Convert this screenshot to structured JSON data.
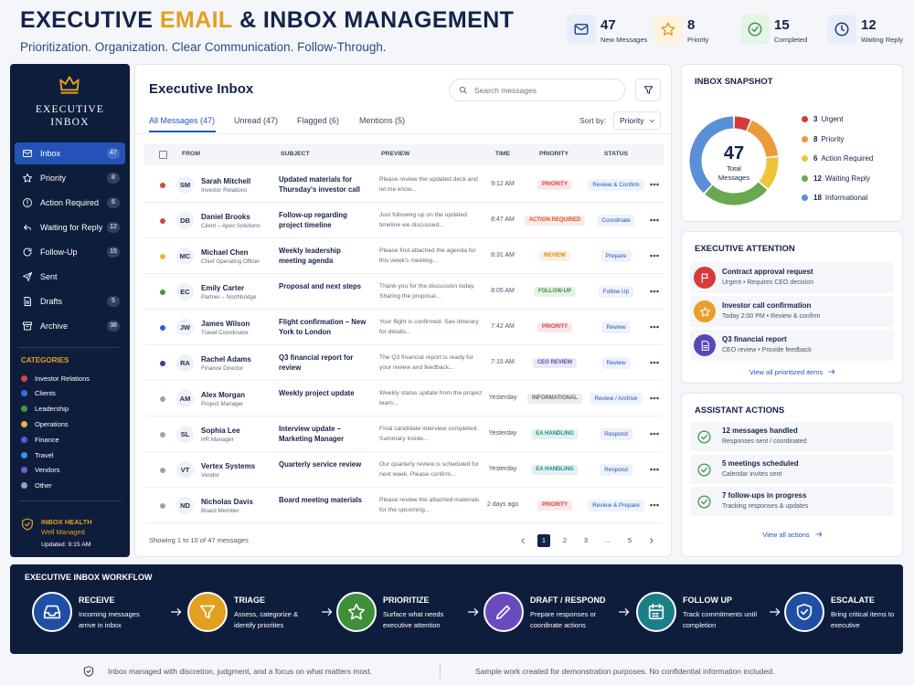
{
  "header": {
    "title_parts": [
      "EXECUTIVE",
      "EMAIL",
      "& INBOX MANAGEMENT"
    ],
    "subtitle": "Prioritization. Organization. Clear Communication. Follow-Through.",
    "stats": [
      {
        "value": 47,
        "label": "New Messages"
      },
      {
        "value": 8,
        "label": "Priority"
      },
      {
        "value": 15,
        "label": "Completed"
      },
      {
        "value": 12,
        "label": "Waiting Reply"
      }
    ]
  },
  "sidebar": {
    "brand": [
      "EXECUTIVE",
      "INBOX"
    ],
    "nav": [
      {
        "label": "Inbox",
        "count": 47
      },
      {
        "label": "Priority",
        "count": 8
      },
      {
        "label": "Action Required",
        "count": 6
      },
      {
        "label": "Waiting for Reply",
        "count": 12
      },
      {
        "label": "Follow-Up",
        "count": 15
      },
      {
        "label": "Sent"
      },
      {
        "label": "Drafts",
        "count": 5
      },
      {
        "label": "Archive",
        "count": 38
      }
    ],
    "categories_title": "CATEGORIES",
    "categories": [
      {
        "name": "Investor Relations",
        "color": "#d64545"
      },
      {
        "name": "Clients",
        "color": "#3a6fd8"
      },
      {
        "name": "Leadership",
        "color": "#3f9a4a"
      },
      {
        "name": "Operations",
        "color": "#e8b730"
      },
      {
        "name": "Finance",
        "color": "#4f63d8"
      },
      {
        "name": "Travel",
        "color": "#3b8fe6"
      },
      {
        "name": "Vendors",
        "color": "#7b5bd1"
      },
      {
        "name": "Other",
        "color": "#9aa3ae"
      }
    ],
    "health": {
      "title": "INBOX HEALTH",
      "status": "Well Managed",
      "updated": "Updated: 9:15 AM"
    }
  },
  "inbox": {
    "title": "Executive Inbox",
    "search_placeholder": "Search messages",
    "tabs": [
      "All Messages (47)",
      "Unread (47)",
      "Flagged (6)",
      "Mentions (5)"
    ],
    "sort_label": "Sort by:",
    "sort_value": "Priority",
    "columns": [
      "FROM",
      "SUBJECT",
      "PREVIEW",
      "TIME",
      "PRIORITY",
      "STATUS"
    ],
    "rows": [
      {
        "color": "#d64545",
        "initials": "SM",
        "name": "Sarah Mitchell",
        "role": "Investor Relations",
        "subject": "Updated materials for Thursday's investor call",
        "preview": "Please review the updated deck and let me know...",
        "time": "9:12 AM",
        "priority": "PRIORITY",
        "priority_color": "#d64545",
        "status": "Review & Confirm"
      },
      {
        "color": "#d64545",
        "initials": "DB",
        "name": "Daniel Brooks",
        "role": "Client – Apex Solutions",
        "subject": "Follow-up regarding project timeline",
        "preview": "Just following up on the updated timeline we discussed...",
        "time": "8:47 AM",
        "priority": "ACTION REQUIRED",
        "priority_color": "#d9532b",
        "status": "Coordinate"
      },
      {
        "color": "#e8b730",
        "initials": "MC",
        "name": "Michael Chen",
        "role": "Chief Operating Officer",
        "subject": "Weekly leadership meeting agenda",
        "preview": "Please find attached the agenda for this week's meeting...",
        "time": "8:31 AM",
        "priority": "REVIEW",
        "priority_color": "#d98a12",
        "status": "Prepare"
      },
      {
        "color": "#3f9a4a",
        "initials": "EC",
        "name": "Emily Carter",
        "role": "Partner – Northbridge",
        "subject": "Proposal and next steps",
        "preview": "Thank you for the discussion today. Sharing the proposal...",
        "time": "8:05 AM",
        "priority": "FOLLOW-UP",
        "priority_color": "#3f8f3a",
        "status": "Follow Up"
      },
      {
        "color": "#2f5fd0",
        "initials": "JW",
        "name": "James Wilson",
        "role": "Travel Coordinator",
        "subject": "Flight confirmation – New York to London",
        "preview": "Your flight is confirmed. See itinerary for details...",
        "time": "7:42 AM",
        "priority": "PRIORITY",
        "priority_color": "#d64545",
        "status": "Review"
      },
      {
        "color": "#3a3f9e",
        "initials": "RA",
        "name": "Rachel Adams",
        "role": "Finance Director",
        "subject": "Q3 financial report for review",
        "preview": "The Q3 financial report is ready for your review and feedback...",
        "time": "7:15 AM",
        "priority": "CEO REVIEW",
        "priority_color": "#5b45b8",
        "status": "Review"
      },
      {
        "color": "#9aa3ae",
        "initials": "AM",
        "name": "Alex Morgan",
        "role": "Project Manager",
        "subject": "Weekly project update",
        "preview": "Weekly status update from the project team...",
        "time": "Yesterday",
        "priority": "INFORMATIONAL",
        "priority_color": "#5f6b7a",
        "status": "Review / Archive"
      },
      {
        "color": "#9aa3ae",
        "initials": "SL",
        "name": "Sophia Lee",
        "role": "HR Manager",
        "subject": "Interview update – Marketing Manager",
        "preview": "Final candidate interview completed. Summary inside...",
        "time": "Yesterday",
        "priority": "EA HANDLING",
        "priority_color": "#1b8a8a",
        "status": "Respond"
      },
      {
        "color": "#9aa3ae",
        "initials": "VT",
        "name": "Vertex Systems",
        "role": "Vendor",
        "subject": "Quarterly service review",
        "preview": "Our quarterly review is scheduled for next week. Please confirm...",
        "time": "Yesterday",
        "priority": "EA HANDLING",
        "priority_color": "#1b8a8a",
        "status": "Respond"
      },
      {
        "color": "#9aa3ae",
        "initials": "ND",
        "name": "Nicholas Davis",
        "role": "Board Member",
        "subject": "Board meeting materials",
        "preview": "Please review the attached materials for the upcoming...",
        "time": "2 days ago",
        "priority": "PRIORITY",
        "priority_color": "#d64545",
        "status": "Review & Prepare"
      }
    ],
    "footer": "Showing 1 to 10 of 47 messages",
    "pages": [
      "1",
      "2",
      "3",
      "...",
      "5"
    ]
  },
  "snapshot": {
    "title": "INBOX SNAPSHOT",
    "total": 47,
    "total_label": "Total Messages",
    "segments": [
      {
        "value": 3,
        "label": "Urgent",
        "color": "#d63a3a"
      },
      {
        "value": 8,
        "label": "Priority",
        "color": "#ec9a3a"
      },
      {
        "value": 6,
        "label": "Action Required",
        "color": "#f0c43a"
      },
      {
        "value": 12,
        "label": "Waiting Reply",
        "color": "#6aa84f"
      },
      {
        "value": 18,
        "label": "Informational",
        "color": "#5b8fd6"
      }
    ]
  },
  "attention": {
    "title": "EXECUTIVE ATTENTION",
    "items": [
      {
        "title": "Contract approval request",
        "detail": "Urgent • Requires CEO decision",
        "color": "#d63a3a"
      },
      {
        "title": "Investor call confirmation",
        "detail": "Today 2:00 PM • Review & confirm",
        "color": "#e8a028"
      },
      {
        "title": "Q3 financial report",
        "detail": "CEO review • Provide feedback",
        "color": "#5b45b8"
      }
    ],
    "link": "View all prioritized items"
  },
  "actions": {
    "title": "ASSISTANT ACTIONS",
    "items": [
      {
        "title": "12 messages handled",
        "detail": "Responses sent / coordinated"
      },
      {
        "title": "5 meetings scheduled",
        "detail": "Calendar invites sent"
      },
      {
        "title": "7 follow-ups in progress",
        "detail": "Tracking responses & updates"
      }
    ],
    "link": "View all actions"
  },
  "workflow": {
    "title": "EXECUTIVE INBOX WORKFLOW",
    "steps": [
      {
        "title": "RECEIVE",
        "desc": "Incoming messages arrive in inbox",
        "color": "#1e4fa3"
      },
      {
        "title": "TRIAGE",
        "desc": "Assess, categorize & identify priorities",
        "color": "#e3a020"
      },
      {
        "title": "PRIORITIZE",
        "desc": "Surface what needs executive attention",
        "color": "#3f8f3a"
      },
      {
        "title": "DRAFT / RESPOND",
        "desc": "Prepare responses or coordinate actions",
        "color": "#6a4bbf"
      },
      {
        "title": "FOLLOW UP",
        "desc": "Track commitments until completion",
        "color": "#1b7f86"
      },
      {
        "title": "ESCALATE",
        "desc": "Bring critical items to executive",
        "color": "#1e4fa3"
      }
    ]
  },
  "footer": {
    "left": "Inbox managed with discretion, judgment, and a focus on what matters most.",
    "right": "Sample work created for demonstration purposes. No confidential information included."
  }
}
